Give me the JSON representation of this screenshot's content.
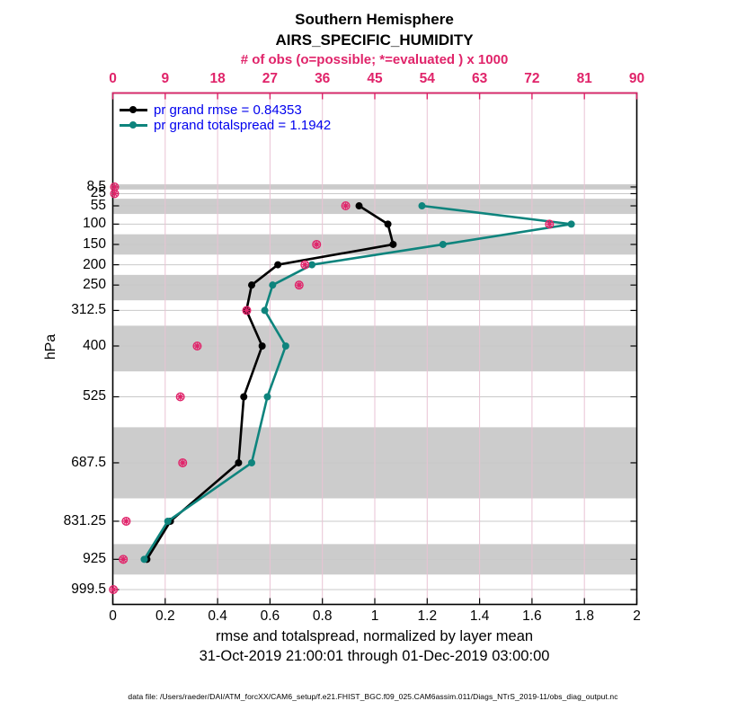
{
  "title": {
    "line1": "Southern Hemisphere",
    "line2": "AIRS_SPECIFIC_HUMIDITY"
  },
  "top_axis": {
    "label": "# of obs (o=possible; *=evaluated ) x 1000"
  },
  "axis": {
    "ylabel": "hPa",
    "xlabel": "rmse and totalspread, normalized by layer mean",
    "date_range": "31-Oct-2019 21:00:01 through 01-Dec-2019 03:00:00"
  },
  "legend": {
    "items": [
      {
        "label": "pr grand rmse = 0.84353",
        "color": "#000000"
      },
      {
        "label": "pr grand totalspread = 1.1942",
        "color": "#0e847d"
      }
    ],
    "text_color": "#0000ee"
  },
  "footer": "data file: /Users/raeder/DAI/ATM_forcXX/CAM6_setup/f.e21.FHIST_BGC.f09_025.CAM6assim.011/Diags_NTrS_2019-11/obs_diag_output.nc",
  "colors": {
    "accent_crimson": "#e0246a",
    "teal": "#0e847d",
    "legend_text_blue": "#0000ee",
    "band_gray": "#cccccc",
    "h_grid": "#c9c9c9",
    "v_grid": "#e9c3d4"
  },
  "chart_data": {
    "type": "line",
    "title": "Southern Hemisphere",
    "subtitle": "AIRS_SPECIFIC_HUMIDITY",
    "xlabel": "rmse and totalspread, normalized by layer mean",
    "ylabel": "hPa",
    "date_range": "31-Oct-2019 21:00:01 through 01-Dec-2019 03:00:00",
    "xlim": [
      0,
      2
    ],
    "x_ticks": [
      0,
      0.2,
      0.4,
      0.6,
      0.8,
      1,
      1.2,
      1.4,
      1.6,
      1.8,
      2
    ],
    "y_ticks_hpa": [
      8.5,
      25,
      55,
      100,
      150,
      200,
      250,
      312.5,
      400,
      525,
      687.5,
      831.25,
      925,
      999.5
    ],
    "y_axis_note": "pressure increases downward, linear",
    "top_axis_label": "# of obs (o=possible; *=evaluated ) x 1000",
    "top_xlim": [
      0,
      90
    ],
    "top_ticks": [
      0,
      9,
      18,
      27,
      36,
      45,
      54,
      63,
      72,
      81,
      90
    ],
    "grid": true,
    "legend_position": "top-left-inside",
    "series": [
      {
        "name": "pr grand rmse = 0.84353",
        "color": "#000000",
        "points": [
          {
            "p": 55,
            "v": 0.94
          },
          {
            "p": 100,
            "v": 1.05
          },
          {
            "p": 150,
            "v": 1.07
          },
          {
            "p": 200,
            "v": 0.63
          },
          {
            "p": 250,
            "v": 0.53
          },
          {
            "p": 312.5,
            "v": 0.51
          },
          {
            "p": 400,
            "v": 0.57
          },
          {
            "p": 525,
            "v": 0.5
          },
          {
            "p": 687.5,
            "v": 0.48
          },
          {
            "p": 831.25,
            "v": 0.22
          },
          {
            "p": 925,
            "v": 0.13
          }
        ]
      },
      {
        "name": "pr grand totalspread = 1.1942",
        "color": "#0e847d",
        "points": [
          {
            "p": 55,
            "v": 1.18
          },
          {
            "p": 100,
            "v": 1.75
          },
          {
            "p": 150,
            "v": 1.26
          },
          {
            "p": 200,
            "v": 0.76
          },
          {
            "p": 250,
            "v": 0.61
          },
          {
            "p": 312.5,
            "v": 0.58
          },
          {
            "p": 400,
            "v": 0.66
          },
          {
            "p": 525,
            "v": 0.59
          },
          {
            "p": 687.5,
            "v": 0.53
          },
          {
            "p": 831.25,
            "v": 0.21
          },
          {
            "p": 925,
            "v": 0.12
          }
        ]
      }
    ],
    "obs_counts_thousands": [
      {
        "p": 8.5,
        "n": 0.3
      },
      {
        "p": 25,
        "n": 0.3
      },
      {
        "p": 55,
        "n": 40
      },
      {
        "p": 100,
        "n": 75
      },
      {
        "p": 150,
        "n": 35
      },
      {
        "p": 200,
        "n": 33
      },
      {
        "p": 250,
        "n": 32
      },
      {
        "p": 312.5,
        "n": 23
      },
      {
        "p": 400,
        "n": 14.5
      },
      {
        "p": 525,
        "n": 11.6
      },
      {
        "p": 687.5,
        "n": 12
      },
      {
        "p": 831.25,
        "n": 2.3
      },
      {
        "p": 925,
        "n": 1.8
      },
      {
        "p": 999.5,
        "n": 0.1
      }
    ],
    "shaded_layer_bands_hpa": [
      [
        2,
        15
      ],
      [
        37.5,
        75
      ],
      [
        125,
        175
      ],
      [
        225,
        287.5
      ],
      [
        350,
        462.5
      ],
      [
        600,
        775
      ],
      [
        887.5,
        962.5
      ]
    ]
  }
}
